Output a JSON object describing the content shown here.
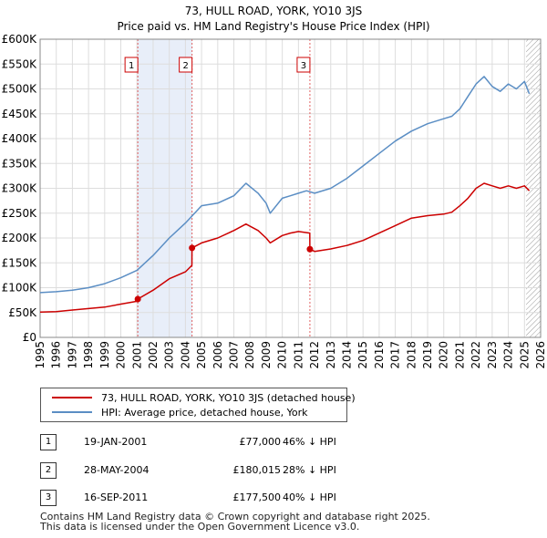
{
  "chart_data": {
    "type": "line",
    "title": "73, HULL ROAD, YORK, YO10 3JS",
    "subtitle": "Price paid vs. HM Land Registry's House Price Index (HPI)",
    "xlabel": "",
    "ylabel": "",
    "xlim": [
      1995,
      2026
    ],
    "ylim": [
      0,
      600000
    ],
    "grid": true,
    "y_ticks": [
      0,
      50000,
      100000,
      150000,
      200000,
      250000,
      300000,
      350000,
      400000,
      450000,
      500000,
      550000,
      600000
    ],
    "y_tick_labels": [
      "£0",
      "£50K",
      "£100K",
      "£150K",
      "£200K",
      "£250K",
      "£300K",
      "£350K",
      "£400K",
      "£450K",
      "£500K",
      "£550K",
      "£600K"
    ],
    "x_ticks": [
      1995,
      1996,
      1997,
      1998,
      1999,
      2000,
      2001,
      2002,
      2003,
      2004,
      2005,
      2006,
      2007,
      2008,
      2009,
      2010,
      2011,
      2012,
      2013,
      2014,
      2015,
      2016,
      2017,
      2018,
      2019,
      2020,
      2021,
      2022,
      2023,
      2024,
      2025,
      2026
    ],
    "x_tick_labels": [
      "1995",
      "1996",
      "1997",
      "1998",
      "1999",
      "2000",
      "2001",
      "2002",
      "2003",
      "2004",
      "2005",
      "2006",
      "2007",
      "2008",
      "2009",
      "2010",
      "2011",
      "2012",
      "2013",
      "2014",
      "2015",
      "2016",
      "2017",
      "2018",
      "2019",
      "2020",
      "2021",
      "2022",
      "2023",
      "2024",
      "2025",
      "2026"
    ],
    "shaded_periods": [
      [
        2001.05,
        2004.41
      ],
      [
        2011.71,
        2011.71
      ]
    ],
    "hatch_from": 2025.1,
    "colors": {
      "property": "#cc0000",
      "hpi": "#5b8ec4",
      "shade": "#e8eef9",
      "vline": "#e06060"
    },
    "series": [
      {
        "name": "73, HULL ROAD, YORK, YO10 3JS (detached house)",
        "color": "#cc0000",
        "x": [
          1995.0,
          1996.0,
          1997.0,
          1998.0,
          1999.0,
          2000.0,
          2001.04,
          2001.05,
          2002.0,
          2003.0,
          2004.0,
          2004.4,
          2004.41,
          2005.0,
          2006.0,
          2007.0,
          2007.75,
          2008.5,
          2009.0,
          2009.25,
          2010.0,
          2010.5,
          2011.0,
          2011.7,
          2011.71,
          2012.0,
          2013.0,
          2014.0,
          2015.0,
          2016.0,
          2017.0,
          2018.0,
          2019.0,
          2020.0,
          2020.5,
          2021.0,
          2021.5,
          2022.0,
          2022.5,
          2023.0,
          2023.5,
          2024.0,
          2024.5,
          2025.0,
          2025.3
        ],
        "values": [
          51000,
          52000,
          55000,
          58000,
          61000,
          67000,
          73000,
          77000,
          95000,
          118000,
          132000,
          145000,
          180015,
          190000,
          200000,
          215000,
          228000,
          215000,
          200000,
          190000,
          205000,
          210000,
          213000,
          210000,
          177500,
          173000,
          178000,
          185000,
          195000,
          210000,
          225000,
          240000,
          245000,
          248000,
          252000,
          265000,
          280000,
          300000,
          310000,
          305000,
          300000,
          305000,
          300000,
          305000,
          295000
        ]
      },
      {
        "name": "HPI: Average price, detached house, York",
        "color": "#5b8ec4",
        "x": [
          1995.0,
          1996.0,
          1997.0,
          1998.0,
          1999.0,
          2000.0,
          2001.0,
          2002.0,
          2003.0,
          2004.0,
          2005.0,
          2006.0,
          2007.0,
          2007.75,
          2008.5,
          2009.0,
          2009.25,
          2010.0,
          2010.5,
          2011.0,
          2011.5,
          2012.0,
          2013.0,
          2014.0,
          2015.0,
          2016.0,
          2017.0,
          2018.0,
          2019.0,
          2020.0,
          2020.5,
          2021.0,
          2021.5,
          2022.0,
          2022.5,
          2023.0,
          2023.5,
          2024.0,
          2024.5,
          2025.0,
          2025.3
        ],
        "values": [
          90000,
          92000,
          95000,
          100000,
          108000,
          120000,
          135000,
          165000,
          200000,
          230000,
          265000,
          270000,
          285000,
          310000,
          290000,
          270000,
          250000,
          280000,
          285000,
          290000,
          295000,
          290000,
          300000,
          320000,
          345000,
          370000,
          395000,
          415000,
          430000,
          440000,
          445000,
          460000,
          485000,
          510000,
          525000,
          505000,
          495000,
          510000,
          500000,
          515000,
          490000
        ]
      }
    ],
    "markers": [
      {
        "label": "1",
        "x": 2001.05,
        "y": 77000
      },
      {
        "label": "2",
        "x": 2004.41,
        "y": 180015
      },
      {
        "label": "3",
        "x": 2011.71,
        "y": 177500
      }
    ]
  },
  "legend": {
    "property_label": "73, HULL ROAD, YORK, YO10 3JS (detached house)",
    "hpi_label": "HPI: Average price, detached house, York"
  },
  "transactions": [
    {
      "num": "1",
      "date": "19-JAN-2001",
      "price": "£77,000",
      "hpi": "46% ↓ HPI"
    },
    {
      "num": "2",
      "date": "28-MAY-2004",
      "price": "£180,015",
      "hpi": "28% ↓ HPI"
    },
    {
      "num": "3",
      "date": "16-SEP-2011",
      "price": "£177,500",
      "hpi": "40% ↓ HPI"
    }
  ],
  "footer": {
    "line1": "Contains HM Land Registry data © Crown copyright and database right 2025.",
    "line2": "This data is licensed under the Open Government Licence v3.0."
  }
}
